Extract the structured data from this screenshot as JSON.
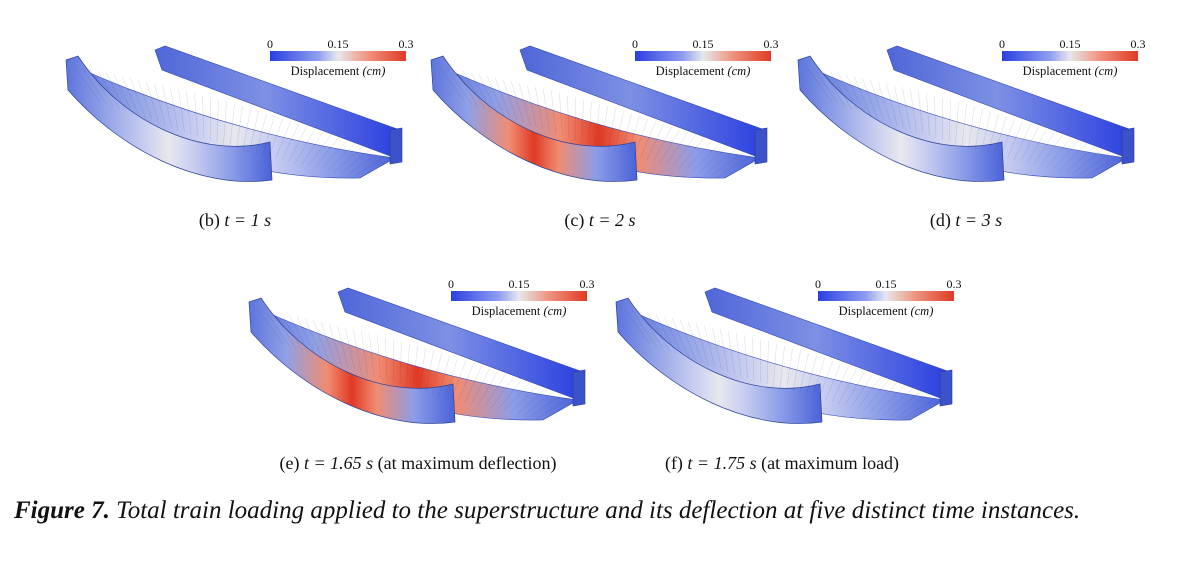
{
  "colorbar": {
    "min": "0",
    "mid": "0.15",
    "max": "0.3",
    "label": "Displacement",
    "unit": "(cm)",
    "color_low": "#2a3fe0",
    "color_mid": "#e8e8ee",
    "color_high": "#e03a24"
  },
  "panels": [
    {
      "label": "(b)",
      "time": "t = 1 s",
      "note": "",
      "level": 0.45
    },
    {
      "label": "(c)",
      "time": "t = 2 s",
      "note": "",
      "level": 0.85
    },
    {
      "label": "(d)",
      "time": "t = 3 s",
      "note": "",
      "level": 0.5
    },
    {
      "label": "(e)",
      "time": "t = 1.65 s",
      "note": "(at maximum deflection)",
      "level": 0.9
    },
    {
      "label": "(f)",
      "time": "t = 1.75 s",
      "note": "(at maximum load)",
      "level": 0.55
    }
  ],
  "figure_caption": {
    "lead": "Figure 7.",
    "text": "Total train loading applied to the superstructure and its deflection at five distinct time instances."
  }
}
